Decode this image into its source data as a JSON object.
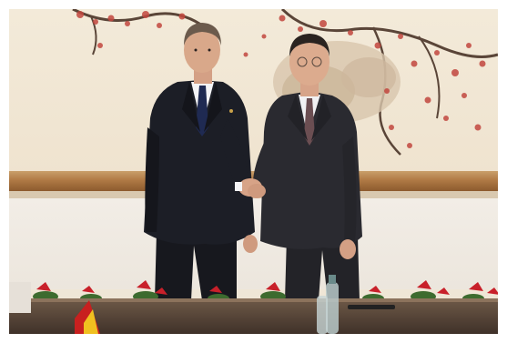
{
  "scene": {
    "colors": {
      "mural": "#f3ead9",
      "blossom": "#c2473f",
      "branch": "#4a3a30",
      "rail": "#b07a45",
      "suit_left": "#1c1e26",
      "suit_right": "#2a2a30",
      "tie_left": "#1f2a52",
      "tie_right": "#6b4e52",
      "shirt": "#f4f4f6",
      "skin": "#d9a88a",
      "hair_left": "#6b5a4c",
      "hair_right": "#2a2320",
      "table": "#4f3e33",
      "flag_red": "#c8201f",
      "flag_yellow": "#f0c020",
      "bottle": "#b9c9c9"
    }
  }
}
